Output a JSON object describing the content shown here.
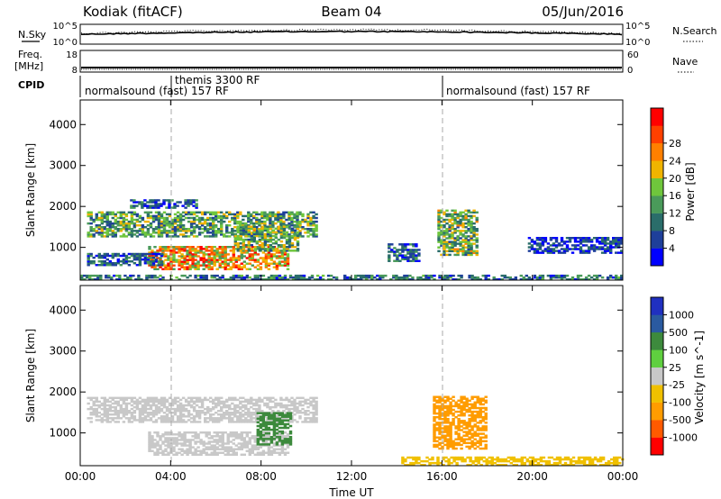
{
  "header": {
    "station": "Kodiak (fitACF)",
    "beam": "Beam 04",
    "date": "05/Jun/2016"
  },
  "left_labels": {
    "nsky": "N.Sky",
    "freq": "Freq.",
    "mhz": "[MHz]",
    "cpid": "CPID"
  },
  "right_labels": {
    "nsearch": "N.Search",
    "nave": "Nave"
  },
  "top_strip": {
    "left_ticks": [
      "10^5",
      "10^0"
    ],
    "right_ticks": [
      "10^5",
      "10^0"
    ]
  },
  "freq_strip": {
    "left_ticks": [
      "18",
      "8"
    ],
    "right_ticks": [
      "60",
      "0"
    ]
  },
  "cpid": {
    "segments": [
      "normalsound (fast) 157 RF",
      "themis 3300 RF",
      "normalsound (fast) 157 RF"
    ]
  },
  "xaxis": {
    "label": "Time UT",
    "ticks": [
      "00:00",
      "04:00",
      "08:00",
      "12:00",
      "16:00",
      "20:00",
      "00:00"
    ]
  },
  "colors": {
    "power": [
      "#0000ff",
      "#1e3f9a",
      "#2a6d6a",
      "#4a9a5a",
      "#6fc63c",
      "#f0b400",
      "#ff8000",
      "#ff4000",
      "#ff0000"
    ],
    "velocity": [
      "#ff0000",
      "#ff5a00",
      "#ff9c00",
      "#f0c000",
      "#c8c8c8",
      "#5fcf3f",
      "#3d8a3d",
      "#2a5aa0",
      "#2030c0"
    ]
  },
  "chart_data": [
    {
      "type": "heatmap",
      "name": "Power",
      "ylabel": "Slant Range [km]",
      "xlabel": "Time UT",
      "yticks": [
        1000,
        2000,
        3000,
        4000
      ],
      "ylim": [
        200,
        4600
      ],
      "xlim_hours": [
        0,
        24
      ],
      "colorbar": {
        "label": "Power [dB]",
        "ticks": [
          "4",
          "8",
          "12",
          "16",
          "20",
          "24",
          "28"
        ]
      },
      "echo_regions": [
        {
          "t_start": 0.3,
          "t_end": 10.4,
          "range_start": 1250,
          "range_end": 1850,
          "value": 14
        },
        {
          "t_start": 3.0,
          "t_end": 9.2,
          "range_start": 450,
          "range_end": 1000,
          "value": 24
        },
        {
          "t_start": 0.3,
          "t_end": 3.6,
          "range_start": 550,
          "range_end": 850,
          "value": 8
        },
        {
          "t_start": 2.2,
          "t_end": 5.2,
          "range_start": 1950,
          "range_end": 2150,
          "value": 8
        },
        {
          "t_start": 6.8,
          "t_end": 9.6,
          "range_start": 900,
          "range_end": 1500,
          "value": 16
        },
        {
          "t_start": 15.8,
          "t_end": 17.6,
          "range_start": 800,
          "range_end": 1900,
          "value": 16
        },
        {
          "t_start": 13.6,
          "t_end": 15.0,
          "range_start": 650,
          "range_end": 1100,
          "value": 8
        },
        {
          "t_start": 19.8,
          "t_end": 23.9,
          "range_start": 850,
          "range_end": 1250,
          "value": 6
        },
        {
          "t_start": 0.0,
          "t_end": 24.0,
          "range_start": 200,
          "range_end": 330,
          "value": 10
        }
      ]
    },
    {
      "type": "heatmap",
      "name": "Velocity",
      "ylabel": "Slant Range [km]",
      "xlabel": "Time UT",
      "yticks": [
        1000,
        2000,
        3000,
        4000
      ],
      "ylim": [
        200,
        4600
      ],
      "xlim_hours": [
        0,
        24
      ],
      "colorbar": {
        "label": "Velocity [m s^-1]",
        "ticks": [
          "1000",
          "500",
          "100",
          "25",
          "-25",
          "-100",
          "-500",
          "-1000"
        ]
      },
      "echo_regions": [
        {
          "t_start": 0.3,
          "t_end": 10.4,
          "range_start": 1250,
          "range_end": 1850,
          "value": 0
        },
        {
          "t_start": 3.0,
          "t_end": 9.2,
          "range_start": 450,
          "range_end": 1000,
          "value": 0
        },
        {
          "t_start": 7.8,
          "t_end": 9.3,
          "range_start": 700,
          "range_end": 1500,
          "value": 150
        },
        {
          "t_start": 15.6,
          "t_end": 18.0,
          "range_start": 600,
          "range_end": 1900,
          "value": -300
        },
        {
          "t_start": 14.2,
          "t_end": 24.0,
          "range_start": 200,
          "range_end": 420,
          "value": -60
        }
      ]
    }
  ]
}
